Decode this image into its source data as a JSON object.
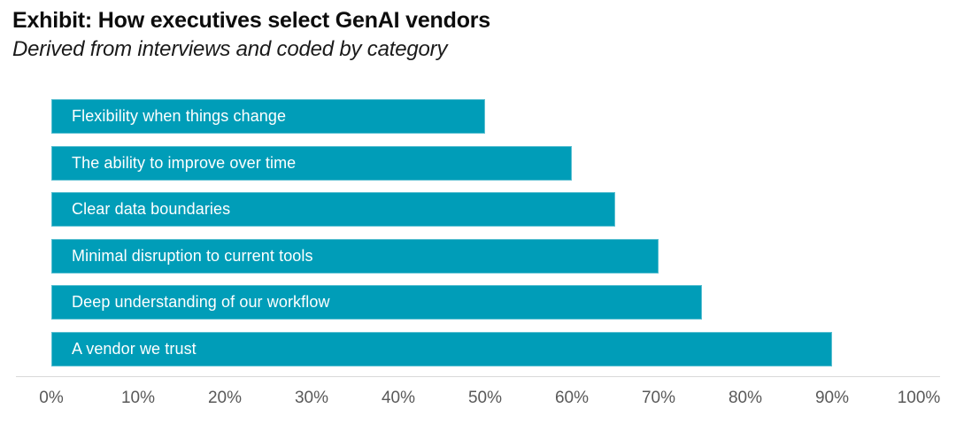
{
  "header": {
    "title": "Exhibit: How executives select GenAI vendors",
    "subtitle": "Derived from interviews and coded by category"
  },
  "chart_data": {
    "type": "bar",
    "orientation": "horizontal",
    "title": "Exhibit: How executives select GenAI vendors",
    "subtitle": "Derived from interviews and coded by category",
    "categories": [
      "Flexibility when things change",
      "The ability to improve over time",
      "Clear data boundaries",
      "Minimal disruption to current tools",
      "Deep understanding of our workflow",
      "A vendor we trust"
    ],
    "values": [
      50,
      60,
      65,
      70,
      75,
      90
    ],
    "unit": "%",
    "xlabel": "",
    "ylabel": "",
    "xlim": [
      0,
      100
    ],
    "x_ticks": [
      "0%",
      "10%",
      "20%",
      "30%",
      "40%",
      "50%",
      "60%",
      "70%",
      "80%",
      "90%",
      "100%"
    ],
    "grid": false,
    "legend": "none",
    "colors": {
      "bar": "#009DB8",
      "bar_label_text": "#ffffff",
      "tick_text": "#595959",
      "axis_line": "#d9d9d9",
      "title_text": "#0d0d0d",
      "background": "#ffffff"
    }
  }
}
